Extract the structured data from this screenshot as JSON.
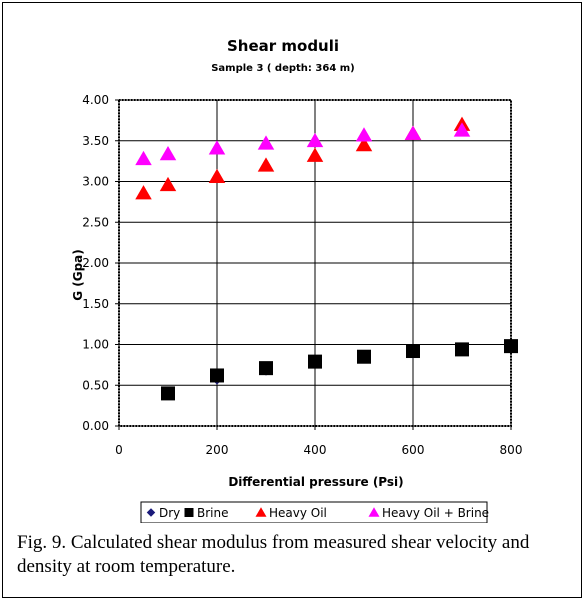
{
  "chart_data": {
    "type": "scatter",
    "title": "Shear moduli",
    "subtitle": "Sample 3 ( depth: 364 m)",
    "xlabel": "Differential pressure (Psi)",
    "ylabel": "G (Gpa)",
    "xlim": [
      0,
      800
    ],
    "ylim": [
      0,
      4
    ],
    "xticks": [
      "0",
      "200",
      "400",
      "600",
      "800"
    ],
    "xtick_values": [
      0,
      200,
      400,
      600,
      800
    ],
    "yticks": [
      "0.00",
      "0.50",
      "1.00",
      "1.50",
      "2.00",
      "2.50",
      "3.00",
      "3.50",
      "4.00"
    ],
    "ytick_values": [
      0,
      0.5,
      1,
      1.5,
      2,
      2.5,
      3,
      3.5,
      4
    ],
    "grid": true,
    "legend_position": "bottom",
    "series": [
      {
        "name": "Dry",
        "marker": "diamond",
        "color": "#1a1a7a",
        "points": [
          [
            100,
            0.38
          ],
          [
            200,
            0.56
          ],
          [
            300,
            0.67
          ],
          [
            400,
            0.76
          ],
          [
            500,
            0.82
          ],
          [
            600,
            0.88
          ],
          [
            700,
            0.94
          ],
          [
            800,
            0.98
          ]
        ]
      },
      {
        "name": "Brine",
        "marker": "square",
        "color": "#000000",
        "points": [
          [
            100,
            0.4
          ],
          [
            200,
            0.62
          ],
          [
            300,
            0.71
          ],
          [
            400,
            0.79
          ],
          [
            500,
            0.85
          ],
          [
            600,
            0.92
          ],
          [
            700,
            0.94
          ],
          [
            800,
            0.98
          ]
        ]
      },
      {
        "name": "Heavy Oil",
        "marker": "triangle",
        "color": "#ff0000",
        "points": [
          [
            50,
            2.86
          ],
          [
            100,
            2.96
          ],
          [
            200,
            3.06
          ],
          [
            300,
            3.2
          ],
          [
            400,
            3.32
          ],
          [
            500,
            3.45
          ],
          [
            600,
            3.59
          ],
          [
            700,
            3.7
          ]
        ]
      },
      {
        "name": "Heavy Oil + Brine",
        "marker": "triangle",
        "color": "#ff00ff",
        "points": [
          [
            50,
            3.28
          ],
          [
            100,
            3.34
          ],
          [
            200,
            3.41
          ],
          [
            300,
            3.47
          ],
          [
            400,
            3.5
          ],
          [
            500,
            3.57
          ],
          [
            600,
            3.59
          ],
          [
            700,
            3.63
          ]
        ]
      }
    ]
  },
  "caption": "Fig. 9.  Calculated shear modulus from measured shear velocity and density at room temperature."
}
